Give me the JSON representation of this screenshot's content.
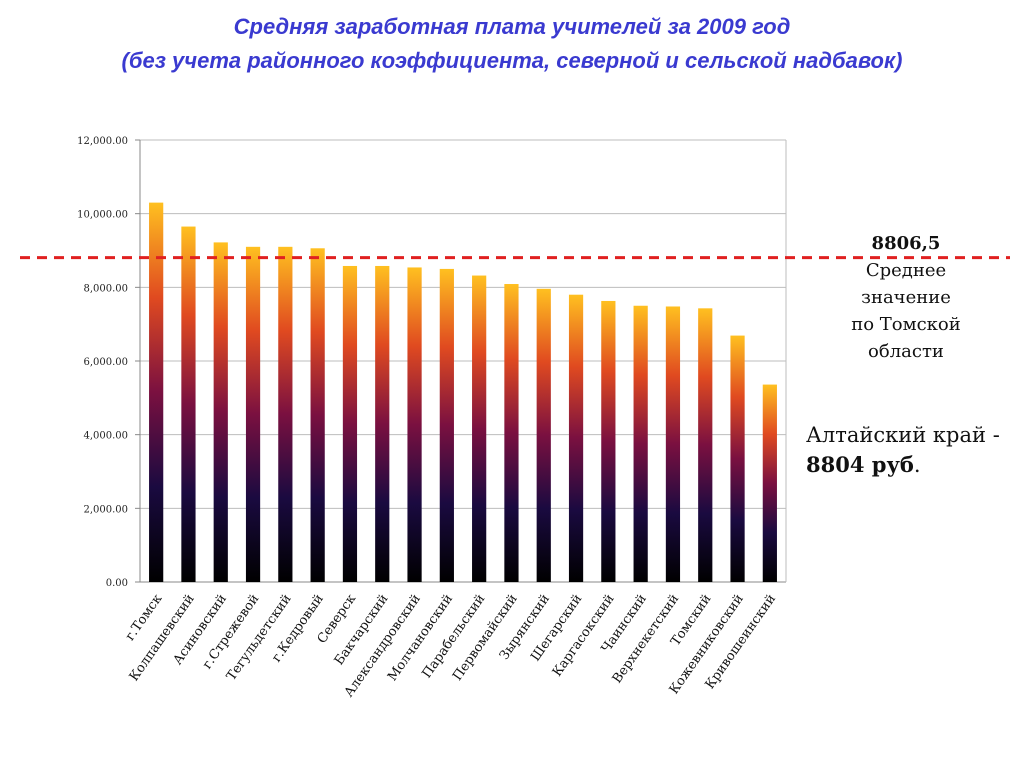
{
  "slide": {
    "title_line1": "Средняя заработная плата учителей за 2009 год",
    "title_line2": "(без учета районного коэффициента,  северной и сельской надбавок)"
  },
  "callout": {
    "value": "8806,5",
    "line1": "Среднее",
    "line2": "значение",
    "line3": "по Томской",
    "line4": "области"
  },
  "altai": {
    "text": "Алтайский край -",
    "value": "8804 руб",
    "suffix": "."
  },
  "chart_data": {
    "type": "bar",
    "title": "",
    "xlabel": "",
    "ylabel": "",
    "ylim": [
      0,
      12000
    ],
    "yticks": [
      0,
      2000,
      4000,
      6000,
      8000,
      10000,
      12000
    ],
    "ytick_labels": [
      "0.00",
      "2,000.00",
      "4,000.00",
      "6,000.00",
      "8,000.00",
      "10,000.00",
      "12,000.00"
    ],
    "grid": true,
    "categories": [
      "г.Томск",
      "Колпашевский",
      "Асиновский",
      "г.Стрежевой",
      "Тегульдетский",
      "г.Кедровый",
      "Северск",
      "Бакчарский",
      "Александровский",
      "Молчановский",
      "Парабельский",
      "Первомайский",
      "Зырянский",
      "Шегарский",
      "Каргасокский",
      "Чаинский",
      "Верхнекетский",
      "Томский",
      "Кожевниковский",
      "Кривошеинский"
    ],
    "values": [
      10300,
      9650,
      9220,
      9100,
      9100,
      9060,
      8580,
      8580,
      8540,
      8500,
      8320,
      8090,
      7960,
      7800,
      7630,
      7500,
      7480,
      7430,
      6690,
      5360
    ],
    "reference_line": {
      "value": 8806.5,
      "color": "#e02020",
      "style": "dashed"
    },
    "bar_gradient": [
      "#000000",
      "#1a0a40",
      "#7a1040",
      "#e04a20",
      "#ffc020"
    ]
  }
}
